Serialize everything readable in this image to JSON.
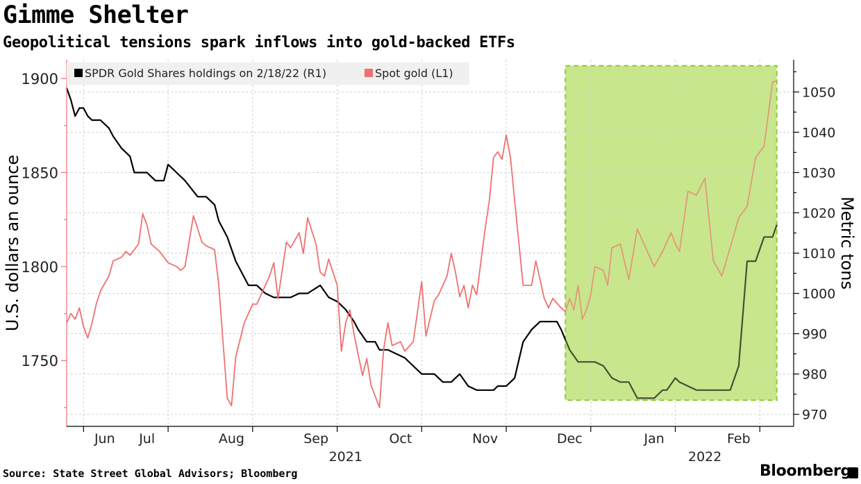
{
  "title": "Gimme Shelter",
  "subtitle": "Geopolitical tensions spark inflows into gold-backed ETFs",
  "source": "Source: State Street Global Advisors; Bloomberg",
  "brand": "Bloomberg",
  "chart_data": {
    "type": "line",
    "title": "Gimme Shelter",
    "legend_position": "top-left",
    "left_axis": {
      "label": "U.S. dollars an ounce",
      "min": 1715,
      "max": 1910,
      "ticks": [
        1750,
        1800,
        1850,
        1900
      ]
    },
    "right_axis": {
      "label": "Metric tons",
      "min": 967,
      "max": 1058,
      "ticks": [
        970,
        980,
        990,
        1000,
        1010,
        1020,
        1030,
        1040,
        1050
      ]
    },
    "x_range": [
      -0.2,
      8.4
    ],
    "x_month_ticks": [
      0,
      1,
      2,
      3,
      4,
      5,
      6,
      7,
      8
    ],
    "x_labels": [
      {
        "pos": 0.25,
        "label": "Jun"
      },
      {
        "pos": 0.75,
        "label": "Jul"
      },
      {
        "pos": 1.75,
        "label": "Aug"
      },
      {
        "pos": 2.75,
        "label": "Sep"
      },
      {
        "pos": 3.75,
        "label": "Oct"
      },
      {
        "pos": 4.75,
        "label": "Nov"
      },
      {
        "pos": 5.75,
        "label": "Dec"
      },
      {
        "pos": 6.75,
        "label": "Jan"
      },
      {
        "pos": 7.75,
        "label": "Feb"
      }
    ],
    "year_labels": [
      {
        "pos": 3.1,
        "label": "2021"
      },
      {
        "pos": 7.35,
        "label": "2022"
      }
    ],
    "highlight": {
      "from": 5.7,
      "to": 8.2,
      "ymin_r": 973.5,
      "ymax_r": 1056.5,
      "color": "#c8e68c",
      "border": "#7fc31c"
    },
    "series": [
      {
        "name": "SPDR Gold Shares holdings on 2/18/22 (R1)",
        "axis": "right",
        "color": "#000000",
        "x": [
          -0.2,
          -0.15,
          -0.1,
          -0.05,
          0.0,
          0.05,
          0.1,
          0.2,
          0.3,
          0.35,
          0.45,
          0.55,
          0.6,
          0.7,
          0.75,
          0.8,
          0.85,
          0.95,
          1.0,
          1.1,
          1.2,
          1.35,
          1.4,
          1.45,
          1.55,
          1.6,
          1.7,
          1.8,
          1.95,
          2.0,
          2.05,
          2.15,
          2.25,
          2.35,
          2.45,
          2.55,
          2.65,
          2.8,
          2.9,
          3.0,
          3.1,
          3.2,
          3.25,
          3.35,
          3.45,
          3.5,
          3.55,
          3.6,
          3.7,
          3.8,
          3.9,
          4.0,
          4.05,
          4.15,
          4.25,
          4.35,
          4.45,
          4.55,
          4.65,
          4.75,
          4.8,
          4.85,
          4.9,
          5.0,
          5.1,
          5.2,
          5.3,
          5.4,
          5.5,
          5.6,
          5.65,
          5.75,
          5.85,
          5.95,
          6.05,
          6.15,
          6.25,
          6.35,
          6.45,
          6.55,
          6.65,
          6.75,
          6.85,
          6.9,
          7.0,
          7.05,
          7.15,
          7.25,
          7.35,
          7.45,
          7.55,
          7.65,
          7.75,
          7.85,
          7.95,
          8.05,
          8.15,
          8.2
        ],
        "y": [
          1051,
          1048,
          1044,
          1046,
          1046,
          1044,
          1043,
          1043,
          1041,
          1039,
          1036,
          1034,
          1030,
          1030,
          1030,
          1029,
          1028,
          1028,
          1032,
          1030,
          1028,
          1024,
          1024,
          1024,
          1022,
          1018,
          1014,
          1008,
          1002,
          1002,
          1002,
          1000,
          999,
          999,
          999,
          1000,
          1000,
          1002,
          999,
          998,
          996,
          993,
          991,
          988,
          988,
          986,
          986,
          986,
          985,
          984,
          982,
          980,
          980,
          980,
          978,
          978,
          980,
          977,
          976,
          976,
          976,
          976,
          977,
          977,
          979,
          988,
          991,
          993,
          993,
          993,
          991,
          986,
          983,
          983,
          983,
          982,
          979,
          978,
          978,
          974,
          974,
          974,
          976,
          976,
          979,
          978,
          977,
          976,
          976,
          976,
          976,
          976,
          982,
          1008,
          1008,
          1014,
          1014,
          1017
        ]
      },
      {
        "name": "Spot gold (L1)",
        "axis": "left",
        "color": "#f07070",
        "x": [
          -0.2,
          -0.15,
          -0.1,
          -0.05,
          0.0,
          0.05,
          0.1,
          0.15,
          0.2,
          0.3,
          0.35,
          0.45,
          0.5,
          0.55,
          0.65,
          0.7,
          0.75,
          0.8,
          0.85,
          0.9,
          1.0,
          1.1,
          1.15,
          1.2,
          1.3,
          1.4,
          1.45,
          1.55,
          1.6,
          1.7,
          1.75,
          1.8,
          1.9,
          2.0,
          2.05,
          2.1,
          2.2,
          2.25,
          2.3,
          2.4,
          2.45,
          2.55,
          2.6,
          2.65,
          2.75,
          2.8,
          2.85,
          2.9,
          3.0,
          3.05,
          3.1,
          3.15,
          3.2,
          3.3,
          3.35,
          3.4,
          3.5,
          3.55,
          3.6,
          3.65,
          3.75,
          3.8,
          3.9,
          4.0,
          4.05,
          4.15,
          4.2,
          4.3,
          4.35,
          4.4,
          4.45,
          4.5,
          4.55,
          4.6,
          4.65,
          4.75,
          4.8,
          4.85,
          4.9,
          4.95,
          5.0,
          5.05,
          5.1,
          5.2,
          5.3,
          5.35,
          5.45,
          5.5,
          5.55,
          5.65,
          5.7,
          5.75,
          5.8,
          5.85,
          5.9,
          5.95,
          6.0,
          6.05,
          6.15,
          6.2,
          6.25,
          6.35,
          6.45,
          6.55,
          6.65,
          6.75,
          6.85,
          6.95,
          7.0,
          7.05,
          7.15,
          7.25,
          7.35,
          7.45,
          7.55,
          7.65,
          7.75,
          7.85,
          7.95,
          8.05,
          8.15,
          8.2
        ],
        "y": [
          1770,
          1775,
          1772,
          1778,
          1768,
          1762,
          1770,
          1780,
          1787,
          1795,
          1803,
          1805,
          1808,
          1806,
          1812,
          1828,
          1822,
          1812,
          1810,
          1808,
          1802,
          1800,
          1798,
          1800,
          1827,
          1813,
          1811,
          1809,
          1790,
          1730,
          1726,
          1752,
          1770,
          1780,
          1780,
          1785,
          1795,
          1802,
          1783,
          1813,
          1810,
          1818,
          1807,
          1826,
          1812,
          1797,
          1795,
          1804,
          1790,
          1755,
          1770,
          1777,
          1764,
          1742,
          1751,
          1737,
          1725,
          1756,
          1770,
          1758,
          1760,
          1755,
          1760,
          1792,
          1763,
          1782,
          1785,
          1795,
          1807,
          1797,
          1784,
          1790,
          1778,
          1790,
          1785,
          1820,
          1835,
          1858,
          1861,
          1857,
          1870,
          1858,
          1835,
          1790,
          1790,
          1803,
          1783,
          1778,
          1783,
          1778,
          1776,
          1783,
          1777,
          1790,
          1772,
          1777,
          1785,
          1800,
          1798,
          1790,
          1810,
          1812,
          1793,
          1820,
          1810,
          1800,
          1808,
          1818,
          1812,
          1808,
          1840,
          1838,
          1847,
          1803,
          1795,
          1810,
          1826,
          1832,
          1858,
          1864,
          1898,
          1899
        ]
      }
    ]
  }
}
